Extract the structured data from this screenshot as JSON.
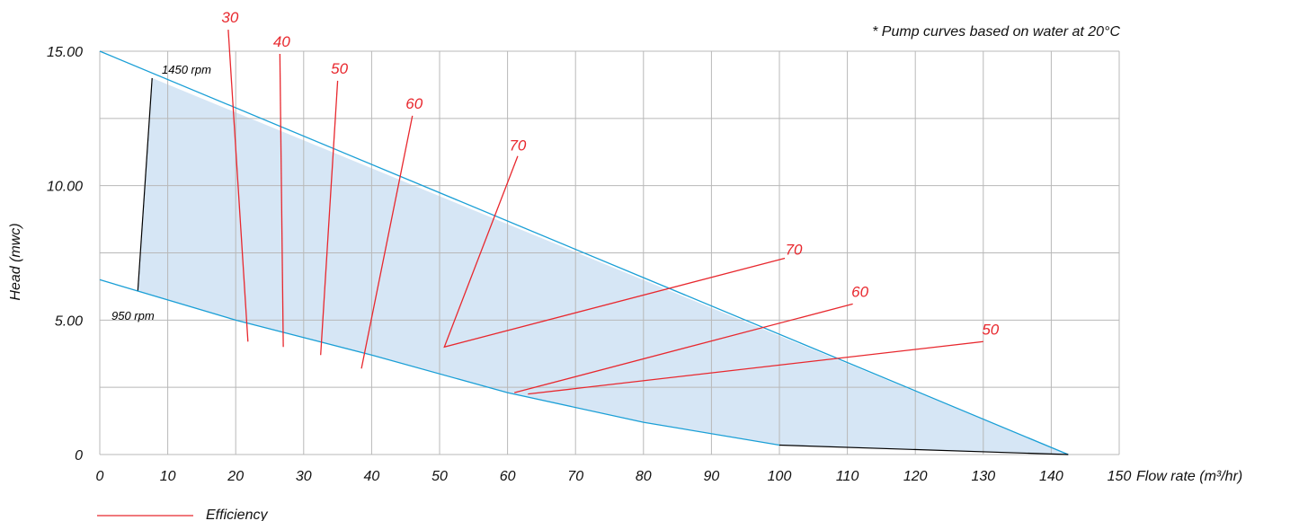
{
  "chart_data": {
    "type": "line",
    "note": "* Pump curves based on water at 20°C",
    "xlabel": "Flow rate (m³/hr)",
    "ylabel": "Head (mwc)",
    "xlim": [
      0,
      150
    ],
    "ylim": [
      0,
      15
    ],
    "x_ticks": [
      "0",
      "10",
      "20",
      "30",
      "40",
      "50",
      "60",
      "70",
      "80",
      "90",
      "100",
      "110",
      "120",
      "130",
      "140",
      "150"
    ],
    "y_ticks": [
      {
        "value": 0,
        "label": "0"
      },
      {
        "value": 5,
        "label": "5.00"
      },
      {
        "value": 10,
        "label": "10.00"
      },
      {
        "value": 15,
        "label": "15.00"
      }
    ],
    "grid": true,
    "colors": {
      "pump_curve": "#1a9fd6",
      "envelope_fill": "#d6e6f5",
      "efficiency": "#e8282e",
      "boundary": "#000000",
      "grid": "#b8b8b8"
    },
    "pump_curves": [
      {
        "name": "1450 rpm",
        "points": [
          [
            0,
            15.0
          ],
          [
            142.5,
            0.0
          ]
        ]
      },
      {
        "name": "950 rpm",
        "points": [
          [
            0,
            6.5
          ],
          [
            20,
            5.0
          ],
          [
            40,
            3.7
          ],
          [
            60,
            2.3
          ],
          [
            80,
            1.2
          ],
          [
            100,
            0.35
          ]
        ]
      }
    ],
    "boundaries": [
      {
        "points": [
          [
            5.6,
            6.1
          ],
          [
            7.7,
            14.0
          ]
        ]
      },
      {
        "points": [
          [
            100,
            0.35
          ],
          [
            142.5,
            0.0
          ]
        ]
      }
    ],
    "efficiency_lines": [
      {
        "label": "30",
        "points": [
          [
            18.9,
            15.8
          ],
          [
            21.8,
            4.2
          ]
        ]
      },
      {
        "label": "40",
        "points": [
          [
            26.5,
            14.9
          ],
          [
            27.0,
            4.0
          ]
        ]
      },
      {
        "label": "50",
        "points": [
          [
            35.0,
            13.9
          ],
          [
            32.5,
            3.7
          ]
        ]
      },
      {
        "label": "60",
        "points": [
          [
            46.0,
            12.6
          ],
          [
            38.5,
            3.2
          ]
        ]
      },
      {
        "label": "70",
        "points": [
          [
            61.5,
            11.1
          ],
          [
            50.7,
            4.0
          ],
          [
            100.8,
            7.3
          ]
        ]
      },
      {
        "label": "60",
        "points": [
          [
            110.8,
            5.6
          ],
          [
            61.0,
            2.3
          ]
        ]
      },
      {
        "label": "50",
        "points": [
          [
            130.0,
            4.2
          ],
          [
            63.0,
            2.25
          ]
        ]
      }
    ],
    "legend": [
      {
        "name": "Efficiency",
        "color": "#e8282e"
      }
    ]
  }
}
